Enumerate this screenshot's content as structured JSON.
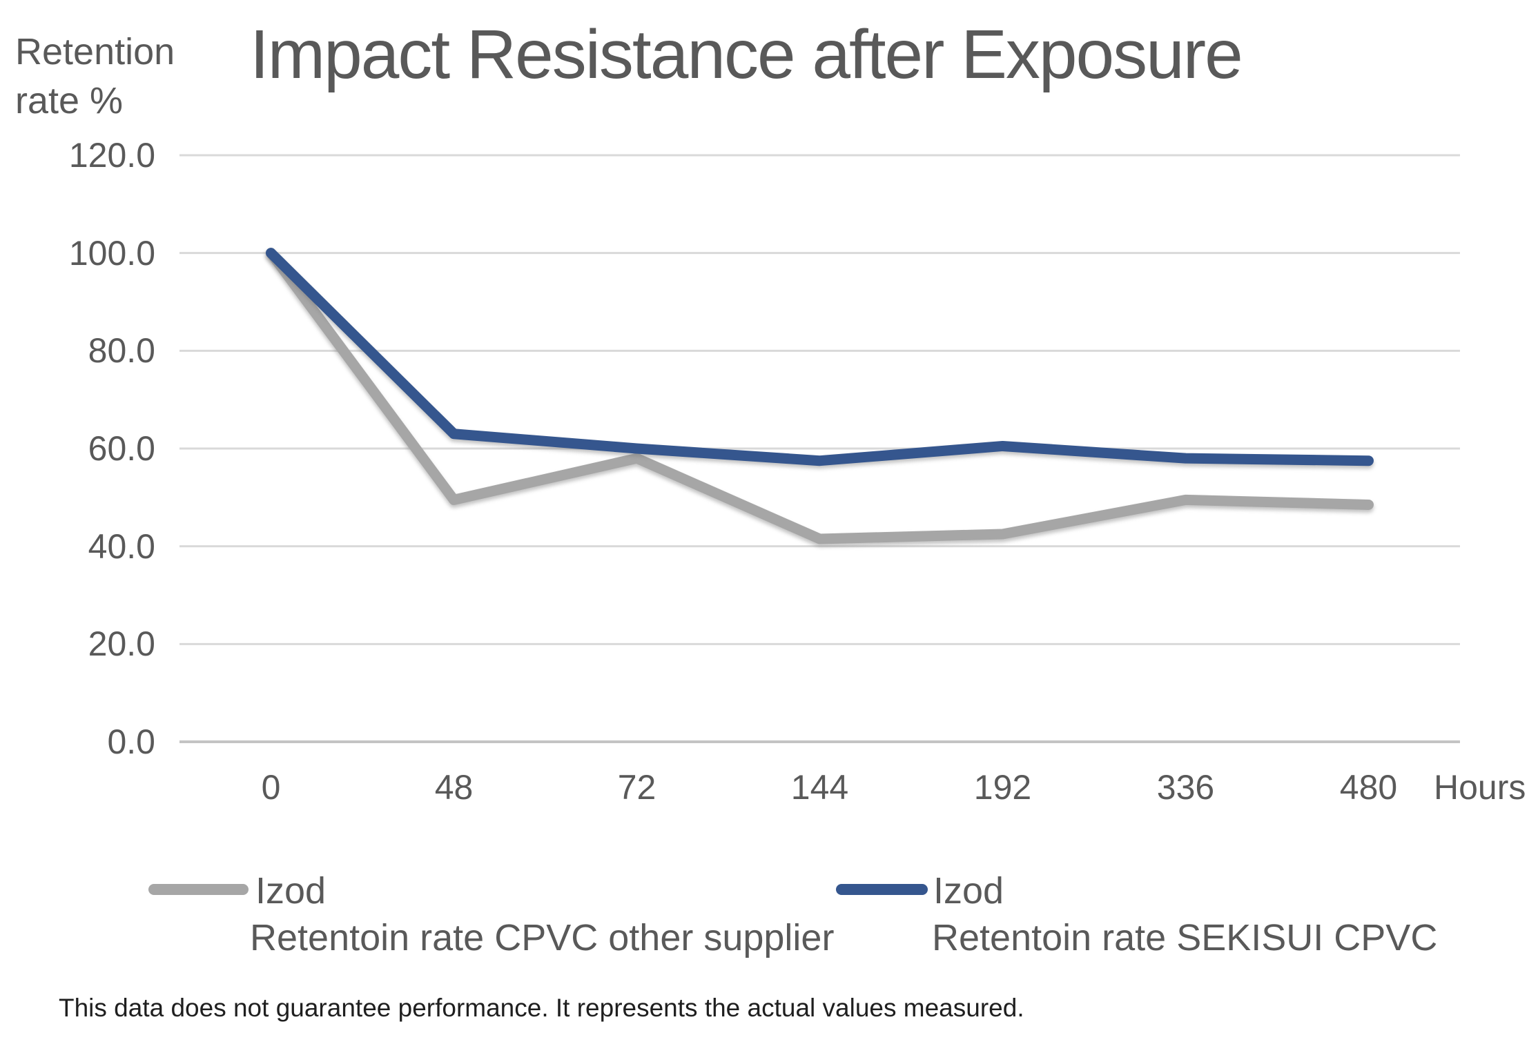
{
  "chart": {
    "title": "Impact Resistance after Exposure",
    "y_axis_title_line1": "Retention",
    "y_axis_title_line2": "rate %"
  },
  "chart_data": {
    "type": "line",
    "title": "Impact Resistance after Exposure",
    "xlabel": "Hours",
    "ylabel": "Retention rate %",
    "ylim": [
      0,
      120
    ],
    "ytick_step": 20,
    "yticks": [
      "120.0",
      "100.0",
      "80.0",
      "60.0",
      "40.0",
      "20.0",
      "0.0"
    ],
    "categories": [
      "0",
      "48",
      "72",
      "144",
      "192",
      "336",
      "480"
    ],
    "grid": true,
    "legend_position": "bottom",
    "series": [
      {
        "name": "Izod Retentoin rate CPVC other supplier",
        "legend_line1": "Izod",
        "legend_line2": "Retentoin rate CPVC other supplier",
        "color": "#a6a6a6",
        "values": [
          100,
          49.5,
          58,
          41.5,
          42.5,
          49.5,
          48.5
        ]
      },
      {
        "name": "Izod Retentoin rate SEKISUI CPVC",
        "legend_line1": "Izod",
        "legend_line2": "Retentoin rate SEKISUI CPVC",
        "color": "#35568e",
        "values": [
          100,
          63,
          60,
          57.5,
          60.5,
          58,
          57.5
        ]
      }
    ]
  },
  "colors": {
    "text_gray": "#595959",
    "gridline": "#d9d9d9",
    "axis_line": "#c4c4c4",
    "footnote_text": "#1f1f1f"
  },
  "footnote": "This data does not guarantee performance. It represents the actual values measured."
}
